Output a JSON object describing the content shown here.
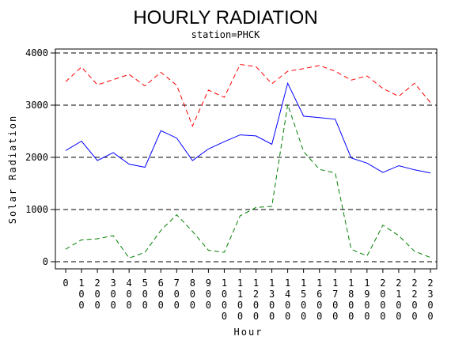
{
  "chart_data": {
    "type": "line",
    "title": "HOURLY RADIATION",
    "subtitle": "station=PHCK",
    "xlabel": "Hour",
    "ylabel": "Solar Radiation",
    "x": [
      0,
      100,
      200,
      300,
      400,
      500,
      600,
      700,
      800,
      900,
      1000,
      1100,
      1200,
      1300,
      1400,
      1500,
      1600,
      1700,
      1800,
      1900,
      2000,
      2100,
      2200,
      2300
    ],
    "x_tick_labels": [
      "0",
      "100",
      "200",
      "300",
      "400",
      "500",
      "600",
      "700",
      "800",
      "900",
      "1000",
      "1100",
      "1200",
      "1300",
      "1400",
      "1500",
      "1600",
      "1700",
      "1800",
      "1900",
      "2000",
      "2100",
      "2200",
      "2300"
    ],
    "xlim": [
      0,
      2300
    ],
    "ylim": [
      0,
      4000
    ],
    "y_ticks": [
      0,
      1000,
      2000,
      3000,
      4000
    ],
    "grid": "horizontal dashed",
    "series": [
      {
        "color": "#ff0000",
        "dash": "dashed",
        "values": [
          3450,
          3730,
          3390,
          3490,
          3590,
          3370,
          3630,
          3380,
          2600,
          3290,
          3150,
          3780,
          3740,
          3410,
          3650,
          3700,
          3760,
          3650,
          3480,
          3560,
          3320,
          3170,
          3420,
          3050
        ]
      },
      {
        "color": "#0000ff",
        "dash": "solid",
        "values": [
          2130,
          2310,
          1940,
          2090,
          1870,
          1810,
          2510,
          2370,
          1940,
          2160,
          2300,
          2430,
          2410,
          2250,
          3420,
          2790,
          2760,
          2730,
          1990,
          1890,
          1710,
          1840,
          1760,
          1700
        ]
      },
      {
        "color": "#008000",
        "dash": "dashed",
        "values": [
          240,
          420,
          440,
          500,
          70,
          180,
          600,
          900,
          580,
          220,
          180,
          880,
          1040,
          1060,
          3010,
          2110,
          1770,
          1700,
          240,
          110,
          700,
          500,
          200,
          80
        ]
      }
    ]
  }
}
